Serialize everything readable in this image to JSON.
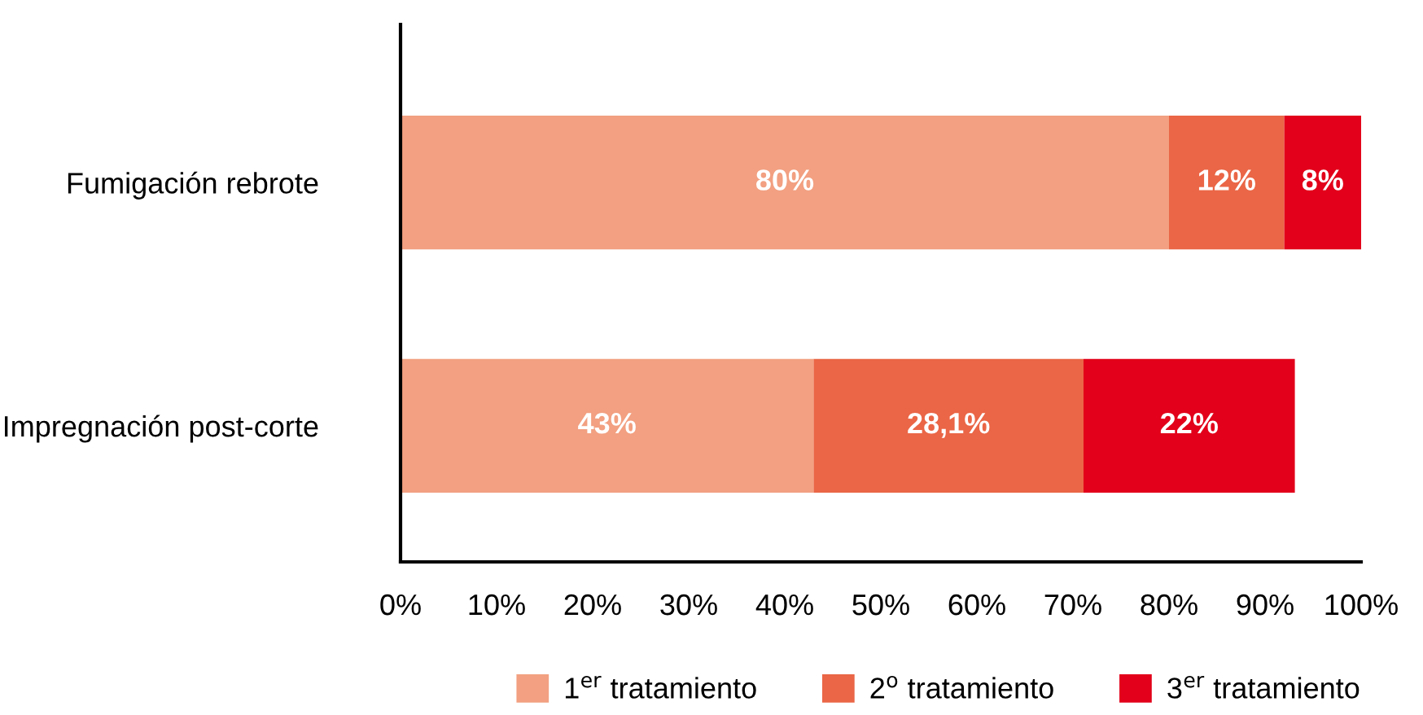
{
  "chart_data": {
    "type": "bar",
    "orientation": "horizontal",
    "stacked": true,
    "categories": [
      "Fumigación rebrote",
      "Impregnación post-corte"
    ],
    "series": [
      {
        "name": "1$^{er}$ tratamiento",
        "color": "#f2a081",
        "values": [
          80,
          43
        ],
        "value_labels": [
          "80%",
          "43%"
        ]
      },
      {
        "name": "2$^{o}$ tratamiento",
        "color": "#ea6646",
        "values": [
          12,
          28.1
        ],
        "value_labels": [
          "12%",
          "28,1%"
        ]
      },
      {
        "name": "3$^{er}$ tratamiento",
        "color": "#e2001a",
        "values": [
          8,
          22
        ],
        "value_labels": [
          "8%",
          "22%"
        ]
      }
    ],
    "xlim": [
      0,
      100
    ],
    "xticks": [
      {
        "value": 0,
        "label": "0%"
      },
      {
        "value": 10,
        "label": "10%"
      },
      {
        "value": 20,
        "label": "20%"
      },
      {
        "value": 30,
        "label": "30%"
      },
      {
        "value": 40,
        "label": "40%"
      },
      {
        "value": 50,
        "label": "50%"
      },
      {
        "value": 60,
        "label": "60%"
      },
      {
        "value": 70,
        "label": "70%"
      },
      {
        "value": 80,
        "label": "80%"
      },
      {
        "value": 90,
        "label": "90%"
      },
      {
        "value": 100,
        "label": "100%"
      }
    ],
    "legend": "bottom",
    "grid": false
  }
}
